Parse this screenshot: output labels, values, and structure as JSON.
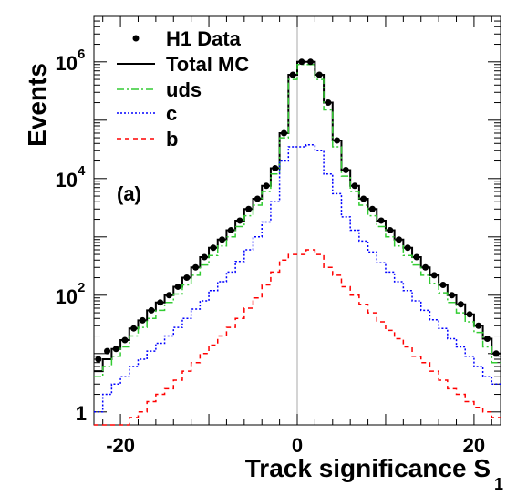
{
  "chart_data": {
    "type": "line",
    "panel_label": "(a)",
    "xlabel": "Track significance S",
    "xlabel_subscript": "1",
    "ylabel": "Events",
    "xlim": [
      -23,
      23
    ],
    "ylim": [
      0.6,
      6000000
    ],
    "yscale": "log",
    "x_ticks": [
      {
        "v": -20,
        "t": "-20"
      },
      {
        "v": 0,
        "t": "0"
      },
      {
        "v": 20,
        "t": "20"
      }
    ],
    "y_ticks": [
      {
        "v": 1,
        "base": "1",
        "exp": ""
      },
      {
        "v": 100,
        "base": "10",
        "exp": "2"
      },
      {
        "v": 10000,
        "base": "10",
        "exp": "4"
      },
      {
        "v": 1000000,
        "base": "10",
        "exp": "6"
      }
    ],
    "legend_position": "top-left",
    "series": [
      {
        "key": "data",
        "name": "H1 Data",
        "style": "points",
        "color": "#000000"
      },
      {
        "key": "total",
        "name": "Total MC",
        "style": "solid",
        "color": "#000000"
      },
      {
        "key": "uds",
        "name": "uds",
        "style": "dashdot",
        "color": "#33cc33"
      },
      {
        "key": "c",
        "name": "c",
        "style": "dotted",
        "color": "#0000ff"
      },
      {
        "key": "b",
        "name": "b",
        "style": "dashed",
        "color": "#ff0000"
      }
    ],
    "bins": {
      "edges": [
        -23,
        -22,
        -21,
        -20,
        -19,
        -18,
        -17,
        -16,
        -15,
        -14,
        -13,
        -12,
        -11,
        -10,
        -9,
        -8,
        -7,
        -6,
        -5,
        -4,
        -3,
        -2,
        -1,
        0,
        1,
        2,
        3,
        4,
        5,
        6,
        7,
        8,
        9,
        10,
        11,
        12,
        13,
        14,
        15,
        16,
        17,
        18,
        19,
        20,
        21,
        22,
        23
      ],
      "data": [
        8,
        11,
        12,
        17,
        27,
        37,
        55,
        75,
        100,
        140,
        200,
        300,
        450,
        650,
        900,
        1300,
        1900,
        3000,
        4500,
        7500,
        15000,
        60000,
        600000,
        1000000,
        1000000,
        600000,
        200000,
        45000,
        14000,
        7500,
        4500,
        3000,
        1900,
        1300,
        900,
        650,
        450,
        300,
        220,
        150,
        100,
        70,
        47,
        30,
        18,
        10
      ],
      "total": [
        5,
        8,
        12,
        17,
        27,
        37,
        55,
        75,
        100,
        140,
        200,
        300,
        450,
        650,
        900,
        1300,
        1900,
        3000,
        4500,
        7500,
        15000,
        60000,
        600000,
        1000000,
        1000000,
        600000,
        200000,
        45000,
        14000,
        7500,
        4500,
        3000,
        1900,
        1300,
        900,
        650,
        450,
        300,
        220,
        150,
        100,
        70,
        47,
        30,
        18,
        10
      ],
      "uds": [
        4,
        6,
        9,
        13,
        20,
        28,
        40,
        55,
        75,
        105,
        150,
        220,
        330,
        480,
        700,
        1000,
        1500,
        2300,
        3500,
        6000,
        12000,
        50000,
        500000,
        900000,
        900000,
        500000,
        150000,
        35000,
        11000,
        6000,
        3500,
        2300,
        1500,
        1000,
        700,
        480,
        330,
        220,
        160,
        110,
        75,
        50,
        35,
        23,
        13,
        7
      ],
      "c": [
        1,
        2,
        3,
        4,
        6,
        8,
        11,
        15,
        20,
        28,
        40,
        58,
        80,
        120,
        170,
        250,
        380,
        600,
        1000,
        1800,
        4000,
        20000,
        35000,
        35000,
        38000,
        30000,
        12000,
        5500,
        2200,
        1300,
        850,
        550,
        360,
        250,
        170,
        120,
        80,
        55,
        38,
        27,
        18,
        13,
        9,
        6,
        4,
        3
      ],
      "b": [
        0.3,
        0.4,
        0.5,
        0.6,
        0.8,
        1,
        1.5,
        2,
        2.5,
        3.5,
        5,
        7,
        10,
        14,
        20,
        28,
        40,
        60,
        90,
        150,
        250,
        400,
        500,
        500,
        600,
        500,
        300,
        220,
        140,
        100,
        70,
        50,
        35,
        25,
        18,
        13,
        9,
        7,
        5,
        3.5,
        2.5,
        2,
        1.5,
        1.2,
        1,
        0.8
      ]
    }
  }
}
